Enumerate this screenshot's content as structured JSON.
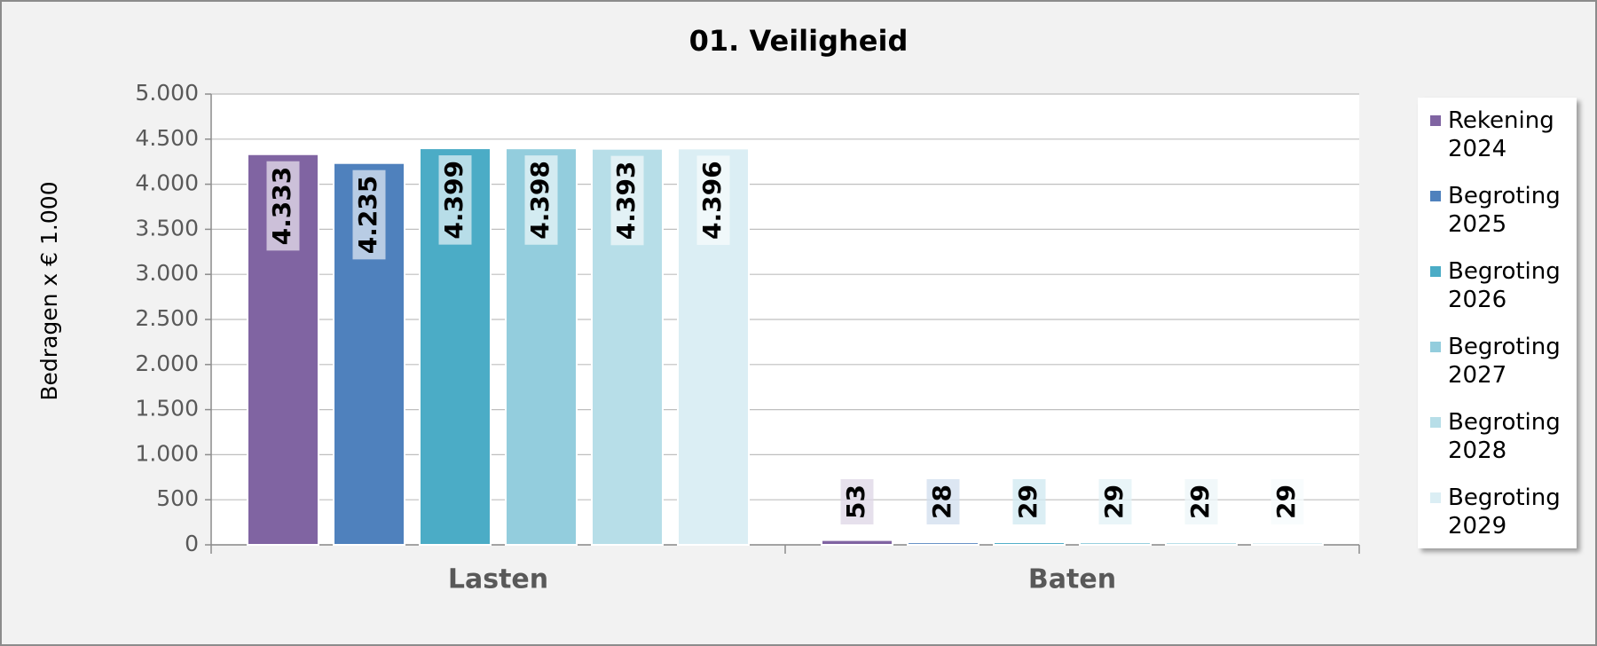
{
  "chart_data": {
    "type": "bar",
    "title": "01. Veiligheid",
    "y_label": "Bedragen x € 1.000",
    "categories": [
      "Lasten",
      "Baten"
    ],
    "series": [
      {
        "name": "Rekening 2024",
        "color": "#8064a2",
        "values": [
          4333,
          53
        ],
        "value_labels": [
          "4.333",
          "53"
        ]
      },
      {
        "name": "Begroting 2025",
        "color": "#4f81bd",
        "values": [
          4235,
          28
        ],
        "value_labels": [
          "4.235",
          "28"
        ]
      },
      {
        "name": "Begroting 2026",
        "color": "#4bacc6",
        "values": [
          4399,
          29
        ],
        "value_labels": [
          "4.399",
          "29"
        ]
      },
      {
        "name": "Begroting 2027",
        "color": "#93cddd",
        "values": [
          4398,
          29
        ],
        "value_labels": [
          "4.398",
          "29"
        ]
      },
      {
        "name": "Begroting 2028",
        "color": "#b7dee8",
        "values": [
          4393,
          29
        ],
        "value_labels": [
          "4.393",
          "29"
        ]
      },
      {
        "name": "Begroting 2029",
        "color": "#dbeef4",
        "values": [
          4396,
          29
        ],
        "value_labels": [
          "4.396",
          "29"
        ]
      }
    ],
    "ylim": [
      0,
      5000
    ],
    "yticks": [
      0,
      500,
      {
        "value": 1000,
        "label": "1.000"
      },
      {
        "value": 1500,
        "label": "1.500"
      },
      {
        "value": 2000,
        "label": "2.000"
      },
      {
        "value": 2500,
        "label": "2.500"
      },
      {
        "value": 3000,
        "label": "3.000"
      },
      {
        "value": 3500,
        "label": "3.500"
      },
      {
        "value": 4000,
        "label": "4.000"
      },
      {
        "value": 4500,
        "label": "4.500"
      },
      {
        "value": 5000,
        "label": "5.000"
      }
    ],
    "grid": true,
    "legend": "right"
  }
}
